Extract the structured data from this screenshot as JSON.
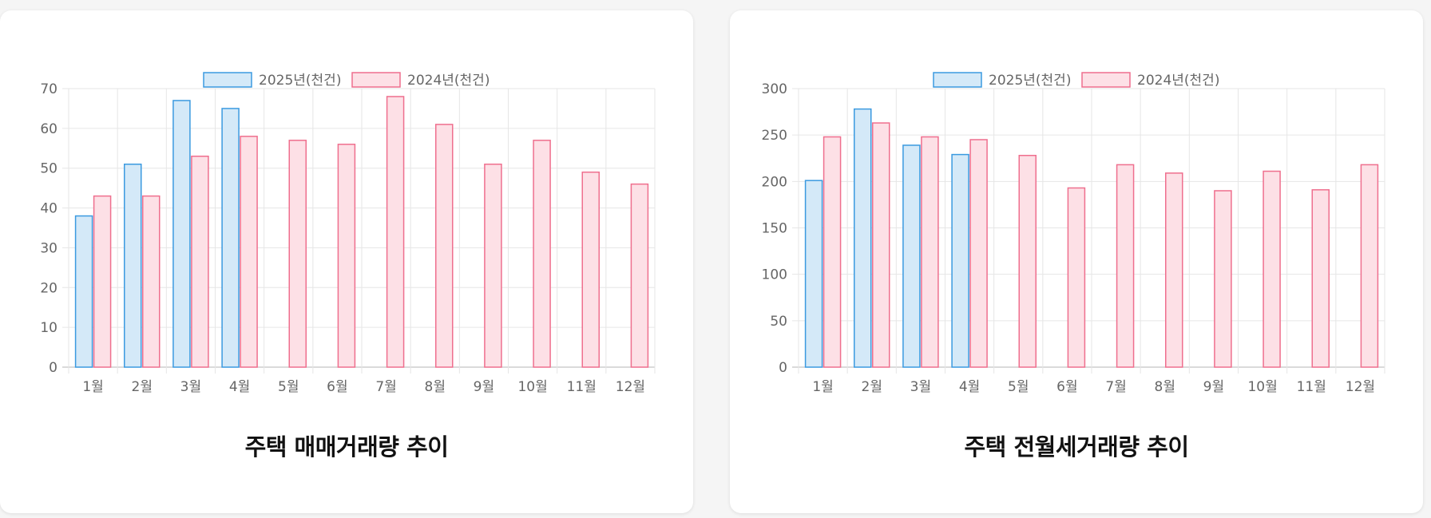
{
  "colors": {
    "series_2025_fill": "#d4e9f8",
    "series_2025_stroke": "#3b9ae0",
    "series_2024_fill": "#fde0e6",
    "series_2024_stroke": "#ef6f8e",
    "grid": "#e6e6e6",
    "axis_text": "#666666"
  },
  "chart_data": [
    {
      "type": "bar",
      "title": "주택 매매거래량 추이",
      "categories": [
        "1월",
        "2월",
        "3월",
        "4월",
        "5월",
        "6월",
        "7월",
        "8월",
        "9월",
        "10월",
        "11월",
        "12월"
      ],
      "series": [
        {
          "name": "2025년(천건)",
          "values": [
            38,
            51,
            67,
            65,
            null,
            null,
            null,
            null,
            null,
            null,
            null,
            null
          ]
        },
        {
          "name": "2024년(천건)",
          "values": [
            43,
            43,
            53,
            58,
            57,
            56,
            68,
            61,
            51,
            57,
            49,
            46
          ]
        }
      ],
      "ylim": [
        0,
        70
      ],
      "yticks": [
        0,
        10,
        20,
        30,
        40,
        50,
        60,
        70
      ],
      "grid": true,
      "legend_position": "top"
    },
    {
      "type": "bar",
      "title": "주택 전월세거래량 추이",
      "categories": [
        "1월",
        "2월",
        "3월",
        "4월",
        "5월",
        "6월",
        "7월",
        "8월",
        "9월",
        "10월",
        "11월",
        "12월"
      ],
      "series": [
        {
          "name": "2025년(천건)",
          "values": [
            201,
            278,
            239,
            229,
            null,
            null,
            null,
            null,
            null,
            null,
            null,
            null
          ]
        },
        {
          "name": "2024년(천건)",
          "values": [
            248,
            263,
            248,
            245,
            228,
            193,
            218,
            209,
            190,
            211,
            191,
            218
          ]
        }
      ],
      "ylim": [
        0,
        300
      ],
      "yticks": [
        0,
        50,
        100,
        150,
        200,
        250,
        300
      ],
      "grid": true,
      "legend_position": "top"
    }
  ]
}
